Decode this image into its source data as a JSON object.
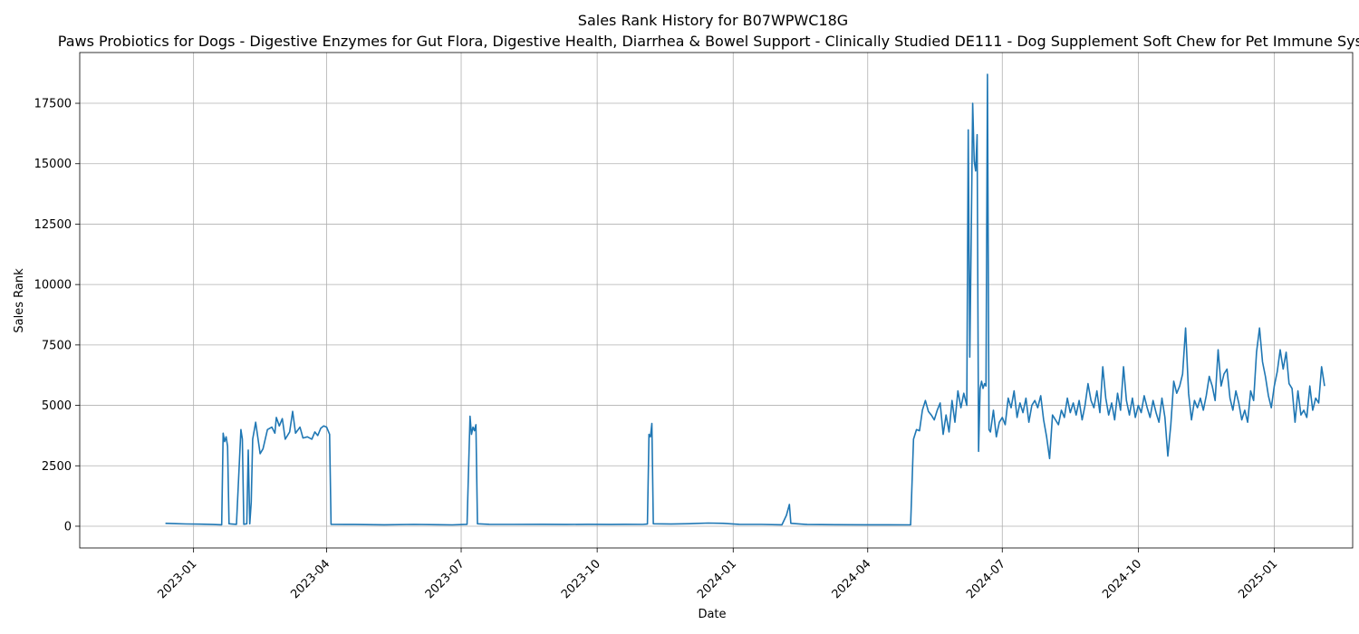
{
  "chart_data": {
    "type": "line",
    "title": "Sales Rank History for B07WPWC18G",
    "subtitle": "Paws Probiotics for Dogs - Digestive Enzymes for Gut Flora, Digestive Health, Diarrhea & Bowel Support - Clinically Studied DE111 - Dog Supplement Soft Chew for Pet Immune Syst",
    "xlabel": "Date",
    "ylabel": "Sales Rank",
    "x_axis": "date",
    "xlim": [
      "2022-10-16",
      "2025-02-23"
    ],
    "ylim": [
      -900,
      19600
    ],
    "x_ticks": [
      "2023-01",
      "2023-04",
      "2023-07",
      "2023-10",
      "2024-01",
      "2024-04",
      "2024-07",
      "2024-10",
      "2025-01"
    ],
    "y_ticks": [
      0,
      2500,
      5000,
      7500,
      10000,
      12500,
      15000,
      17500
    ],
    "grid": true,
    "legend": "none",
    "line_color": "#1f77b4",
    "series": [
      {
        "points": [
          [
            "2022-12-13",
            120
          ],
          [
            "2022-12-20",
            105
          ],
          [
            "2022-12-27",
            95
          ],
          [
            "2023-01-05",
            85
          ],
          [
            "2023-01-14",
            70
          ],
          [
            "2023-01-20",
            60
          ],
          [
            "2023-01-21",
            3850
          ],
          [
            "2023-01-22",
            3500
          ],
          [
            "2023-01-23",
            3700
          ],
          [
            "2023-01-24",
            3300
          ],
          [
            "2023-01-25",
            100
          ],
          [
            "2023-01-30",
            80
          ],
          [
            "2023-02-02",
            4000
          ],
          [
            "2023-02-03",
            3600
          ],
          [
            "2023-02-04",
            80
          ],
          [
            "2023-02-06",
            100
          ],
          [
            "2023-02-07",
            3150
          ],
          [
            "2023-02-08",
            100
          ],
          [
            "2023-02-09",
            1000
          ],
          [
            "2023-02-10",
            3600
          ],
          [
            "2023-02-12",
            4300
          ],
          [
            "2023-02-15",
            3000
          ],
          [
            "2023-02-17",
            3200
          ],
          [
            "2023-02-20",
            4000
          ],
          [
            "2023-02-23",
            4100
          ],
          [
            "2023-02-25",
            3850
          ],
          [
            "2023-02-26",
            4500
          ],
          [
            "2023-02-28",
            4150
          ],
          [
            "2023-03-02",
            4450
          ],
          [
            "2023-03-04",
            3600
          ],
          [
            "2023-03-07",
            3900
          ],
          [
            "2023-03-09",
            4750
          ],
          [
            "2023-03-11",
            3850
          ],
          [
            "2023-03-14",
            4100
          ],
          [
            "2023-03-16",
            3650
          ],
          [
            "2023-03-19",
            3700
          ],
          [
            "2023-03-22",
            3600
          ],
          [
            "2023-03-24",
            3900
          ],
          [
            "2023-03-26",
            3750
          ],
          [
            "2023-03-28",
            4050
          ],
          [
            "2023-03-30",
            4150
          ],
          [
            "2023-04-01",
            4100
          ],
          [
            "2023-04-03",
            3800
          ],
          [
            "2023-04-04",
            80
          ],
          [
            "2023-04-20",
            70
          ],
          [
            "2023-05-10",
            60
          ],
          [
            "2023-05-30",
            75
          ],
          [
            "2023-06-15",
            65
          ],
          [
            "2023-06-25",
            55
          ],
          [
            "2023-07-05",
            80
          ],
          [
            "2023-07-07",
            4550
          ],
          [
            "2023-07-08",
            3800
          ],
          [
            "2023-07-09",
            4100
          ],
          [
            "2023-07-10",
            3950
          ],
          [
            "2023-07-11",
            4200
          ],
          [
            "2023-07-12",
            100
          ],
          [
            "2023-07-20",
            80
          ],
          [
            "2023-08-05",
            75
          ],
          [
            "2023-08-25",
            80
          ],
          [
            "2023-09-10",
            70
          ],
          [
            "2023-09-25",
            80
          ],
          [
            "2023-10-10",
            70
          ],
          [
            "2023-10-20",
            80
          ],
          [
            "2023-11-01",
            75
          ],
          [
            "2023-11-04",
            90
          ],
          [
            "2023-11-05",
            3800
          ],
          [
            "2023-11-06",
            3700
          ],
          [
            "2023-11-07",
            4250
          ],
          [
            "2023-11-08",
            100
          ],
          [
            "2023-11-20",
            90
          ],
          [
            "2023-12-05",
            110
          ],
          [
            "2023-12-15",
            130
          ],
          [
            "2023-12-25",
            120
          ],
          [
            "2024-01-05",
            80
          ],
          [
            "2024-01-20",
            75
          ],
          [
            "2024-02-03",
            60
          ],
          [
            "2024-02-06",
            450
          ],
          [
            "2024-02-08",
            900
          ],
          [
            "2024-02-09",
            120
          ],
          [
            "2024-02-20",
            70
          ],
          [
            "2024-03-10",
            65
          ],
          [
            "2024-03-30",
            60
          ],
          [
            "2024-04-15",
            60
          ],
          [
            "2024-04-30",
            55
          ],
          [
            "2024-05-02",
            3600
          ],
          [
            "2024-05-04",
            4000
          ],
          [
            "2024-05-06",
            3950
          ],
          [
            "2024-05-08",
            4800
          ],
          [
            "2024-05-10",
            5200
          ],
          [
            "2024-05-12",
            4750
          ],
          [
            "2024-05-14",
            4600
          ],
          [
            "2024-05-16",
            4400
          ],
          [
            "2024-05-18",
            4800
          ],
          [
            "2024-05-20",
            5100
          ],
          [
            "2024-05-22",
            3800
          ],
          [
            "2024-05-24",
            4600
          ],
          [
            "2024-05-26",
            3900
          ],
          [
            "2024-05-28",
            5200
          ],
          [
            "2024-05-30",
            4300
          ],
          [
            "2024-06-01",
            5600
          ],
          [
            "2024-06-03",
            4900
          ],
          [
            "2024-06-05",
            5500
          ],
          [
            "2024-06-07",
            5000
          ],
          [
            "2024-06-08",
            16400
          ],
          [
            "2024-06-09",
            7000
          ],
          [
            "2024-06-10",
            12000
          ],
          [
            "2024-06-11",
            17500
          ],
          [
            "2024-06-12",
            15100
          ],
          [
            "2024-06-13",
            14700
          ],
          [
            "2024-06-14",
            16200
          ],
          [
            "2024-06-15",
            3100
          ],
          [
            "2024-06-16",
            5700
          ],
          [
            "2024-06-17",
            6000
          ],
          [
            "2024-06-18",
            5700
          ],
          [
            "2024-06-19",
            5900
          ],
          [
            "2024-06-20",
            5800
          ],
          [
            "2024-06-21",
            18700
          ],
          [
            "2024-06-22",
            4000
          ],
          [
            "2024-06-23",
            3900
          ],
          [
            "2024-06-25",
            4800
          ],
          [
            "2024-06-27",
            3700
          ],
          [
            "2024-06-29",
            4300
          ],
          [
            "2024-07-01",
            4500
          ],
          [
            "2024-07-03",
            4200
          ],
          [
            "2024-07-05",
            5300
          ],
          [
            "2024-07-07",
            4900
          ],
          [
            "2024-07-09",
            5600
          ],
          [
            "2024-07-11",
            4500
          ],
          [
            "2024-07-13",
            5100
          ],
          [
            "2024-07-15",
            4700
          ],
          [
            "2024-07-17",
            5300
          ],
          [
            "2024-07-19",
            4300
          ],
          [
            "2024-07-21",
            5000
          ],
          [
            "2024-07-23",
            5200
          ],
          [
            "2024-07-25",
            4900
          ],
          [
            "2024-07-27",
            5400
          ],
          [
            "2024-07-29",
            4400
          ],
          [
            "2024-07-31",
            3700
          ],
          [
            "2024-08-02",
            2800
          ],
          [
            "2024-08-04",
            4600
          ],
          [
            "2024-08-06",
            4400
          ],
          [
            "2024-08-08",
            4200
          ],
          [
            "2024-08-10",
            4800
          ],
          [
            "2024-08-12",
            4500
          ],
          [
            "2024-08-14",
            5300
          ],
          [
            "2024-08-16",
            4700
          ],
          [
            "2024-08-18",
            5100
          ],
          [
            "2024-08-20",
            4600
          ],
          [
            "2024-08-22",
            5200
          ],
          [
            "2024-08-24",
            4400
          ],
          [
            "2024-08-26",
            5000
          ],
          [
            "2024-08-28",
            5900
          ],
          [
            "2024-08-30",
            5200
          ],
          [
            "2024-09-01",
            4900
          ],
          [
            "2024-09-03",
            5600
          ],
          [
            "2024-09-05",
            4700
          ],
          [
            "2024-09-07",
            6600
          ],
          [
            "2024-09-09",
            5300
          ],
          [
            "2024-09-11",
            4600
          ],
          [
            "2024-09-13",
            5100
          ],
          [
            "2024-09-15",
            4400
          ],
          [
            "2024-09-17",
            5500
          ],
          [
            "2024-09-19",
            4800
          ],
          [
            "2024-09-21",
            6600
          ],
          [
            "2024-09-23",
            5200
          ],
          [
            "2024-09-25",
            4600
          ],
          [
            "2024-09-27",
            5300
          ],
          [
            "2024-09-29",
            4500
          ],
          [
            "2024-10-01",
            5000
          ],
          [
            "2024-10-03",
            4700
          ],
          [
            "2024-10-05",
            5400
          ],
          [
            "2024-10-07",
            4900
          ],
          [
            "2024-10-09",
            4500
          ],
          [
            "2024-10-11",
            5200
          ],
          [
            "2024-10-13",
            4700
          ],
          [
            "2024-10-15",
            4300
          ],
          [
            "2024-10-17",
            5300
          ],
          [
            "2024-10-19",
            4500
          ],
          [
            "2024-10-21",
            2900
          ],
          [
            "2024-10-23",
            4200
          ],
          [
            "2024-10-25",
            6000
          ],
          [
            "2024-10-27",
            5500
          ],
          [
            "2024-10-29",
            5800
          ],
          [
            "2024-10-31",
            6300
          ],
          [
            "2024-11-02",
            8200
          ],
          [
            "2024-11-04",
            5500
          ],
          [
            "2024-11-06",
            4400
          ],
          [
            "2024-11-08",
            5200
          ],
          [
            "2024-11-10",
            4900
          ],
          [
            "2024-11-12",
            5300
          ],
          [
            "2024-11-14",
            4800
          ],
          [
            "2024-11-16",
            5400
          ],
          [
            "2024-11-18",
            6200
          ],
          [
            "2024-11-20",
            5800
          ],
          [
            "2024-11-22",
            5200
          ],
          [
            "2024-11-24",
            7300
          ],
          [
            "2024-11-26",
            5800
          ],
          [
            "2024-11-28",
            6300
          ],
          [
            "2024-11-30",
            6500
          ],
          [
            "2024-12-02",
            5300
          ],
          [
            "2024-12-04",
            4800
          ],
          [
            "2024-12-06",
            5600
          ],
          [
            "2024-12-08",
            5100
          ],
          [
            "2024-12-10",
            4400
          ],
          [
            "2024-12-12",
            4800
          ],
          [
            "2024-12-14",
            4300
          ],
          [
            "2024-12-16",
            5600
          ],
          [
            "2024-12-18",
            5200
          ],
          [
            "2024-12-20",
            7200
          ],
          [
            "2024-12-22",
            8200
          ],
          [
            "2024-12-24",
            6800
          ],
          [
            "2024-12-26",
            6200
          ],
          [
            "2024-12-28",
            5400
          ],
          [
            "2024-12-30",
            4900
          ],
          [
            "2025-01-01",
            5800
          ],
          [
            "2025-01-03",
            6400
          ],
          [
            "2025-01-05",
            7300
          ],
          [
            "2025-01-07",
            6500
          ],
          [
            "2025-01-09",
            7200
          ],
          [
            "2025-01-11",
            5900
          ],
          [
            "2025-01-13",
            5700
          ],
          [
            "2025-01-15",
            4300
          ],
          [
            "2025-01-17",
            5600
          ],
          [
            "2025-01-19",
            4600
          ],
          [
            "2025-01-21",
            4800
          ],
          [
            "2025-01-23",
            4500
          ],
          [
            "2025-01-25",
            5800
          ],
          [
            "2025-01-27",
            4800
          ],
          [
            "2025-01-29",
            5300
          ],
          [
            "2025-01-31",
            5100
          ],
          [
            "2025-02-02",
            6600
          ],
          [
            "2025-02-04",
            5800
          ]
        ]
      }
    ]
  }
}
